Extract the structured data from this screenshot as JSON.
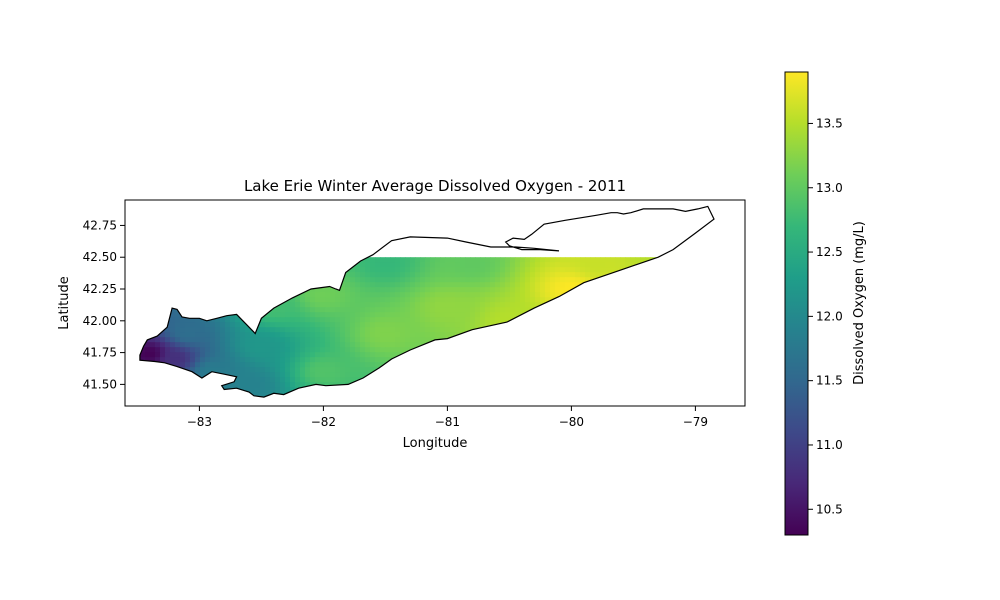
{
  "chart_data": {
    "type": "heatmap",
    "title": "Lake Erie Winter Average Dissolved Oxygen - 2011",
    "xlabel": "Longitude",
    "ylabel": "Latitude",
    "xlim": [
      -83.6,
      -78.6
    ],
    "ylim": [
      41.33,
      42.95
    ],
    "x_ticks": [
      -83,
      -82,
      -81,
      -80,
      -79
    ],
    "x_tick_labels": [
      "−83",
      "−82",
      "−81",
      "−80",
      "−79"
    ],
    "y_ticks": [
      41.5,
      41.75,
      42.0,
      42.25,
      42.5,
      42.75
    ],
    "y_tick_labels": [
      "41.50",
      "41.75",
      "42.00",
      "42.25",
      "42.50",
      "42.75"
    ],
    "grid": false,
    "colormap": "viridis",
    "field_max_lat": 42.5,
    "colorbar": {
      "label": "Dissolved Oxygen (mg/L)",
      "range": [
        10.3,
        13.9
      ],
      "ticks": [
        10.5,
        11.0,
        11.5,
        12.0,
        12.5,
        13.0,
        13.5
      ],
      "tick_labels": [
        "10.5",
        "11.0",
        "11.5",
        "12.0",
        "12.5",
        "13.0",
        "13.5"
      ],
      "colors": [
        "#440154",
        "#482878",
        "#3e4989",
        "#31688e",
        "#26828e",
        "#1f9e89",
        "#35b779",
        "#6ece58",
        "#b5de2b",
        "#fde725"
      ]
    },
    "field_points": [
      {
        "lon": -83.4,
        "lat": 41.74,
        "value": 10.3
      },
      {
        "lon": -83.2,
        "lat": 41.7,
        "value": 10.8
      },
      {
        "lon": -83.1,
        "lat": 41.9,
        "value": 11.6
      },
      {
        "lon": -82.9,
        "lat": 41.6,
        "value": 11.8
      },
      {
        "lon": -82.6,
        "lat": 41.5,
        "value": 11.9
      },
      {
        "lon": -82.5,
        "lat": 41.8,
        "value": 12.2
      },
      {
        "lon": -82.4,
        "lat": 42.1,
        "value": 12.8
      },
      {
        "lon": -82.0,
        "lat": 41.6,
        "value": 12.9
      },
      {
        "lon": -82.0,
        "lat": 42.2,
        "value": 13.1
      },
      {
        "lon": -81.5,
        "lat": 42.45,
        "value": 12.7
      },
      {
        "lon": -81.5,
        "lat": 41.9,
        "value": 13.2
      },
      {
        "lon": -81.0,
        "lat": 42.1,
        "value": 13.3
      },
      {
        "lon": -80.8,
        "lat": 42.45,
        "value": 13.0
      },
      {
        "lon": -80.5,
        "lat": 42.0,
        "value": 13.5
      },
      {
        "lon": -80.0,
        "lat": 42.25,
        "value": 13.9
      },
      {
        "lon": -79.8,
        "lat": 42.45,
        "value": 13.6
      },
      {
        "lon": -79.6,
        "lat": 42.2,
        "value": 13.7
      },
      {
        "lon": -79.3,
        "lat": 42.45,
        "value": 13.5
      }
    ],
    "shoreline": [
      [
        -83.48,
        41.73
      ],
      [
        -83.45,
        41.8
      ],
      [
        -83.42,
        41.85
      ],
      [
        -83.34,
        41.88
      ],
      [
        -83.26,
        41.95
      ],
      [
        -83.22,
        42.1
      ],
      [
        -83.18,
        42.09
      ],
      [
        -83.14,
        42.03
      ],
      [
        -83.08,
        42.02
      ],
      [
        -83.0,
        42.02
      ],
      [
        -82.94,
        42.0
      ],
      [
        -82.86,
        42.02
      ],
      [
        -82.78,
        42.04
      ],
      [
        -82.7,
        42.05
      ],
      [
        -82.63,
        41.98
      ],
      [
        -82.55,
        41.9
      ],
      [
        -82.5,
        42.02
      ],
      [
        -82.4,
        42.1
      ],
      [
        -82.25,
        42.18
      ],
      [
        -82.1,
        42.25
      ],
      [
        -81.95,
        42.27
      ],
      [
        -81.9,
        42.25
      ],
      [
        -81.87,
        42.24
      ],
      [
        -81.82,
        42.38
      ],
      [
        -81.7,
        42.47
      ],
      [
        -81.6,
        42.52
      ],
      [
        -81.45,
        42.63
      ],
      [
        -81.3,
        42.66
      ],
      [
        -81.0,
        42.65
      ],
      [
        -80.85,
        42.62
      ],
      [
        -80.65,
        42.58
      ],
      [
        -80.45,
        42.58
      ],
      [
        -80.3,
        42.57
      ],
      [
        -80.1,
        42.55
      ],
      [
        -80.25,
        42.56
      ],
      [
        -80.4,
        42.56
      ],
      [
        -80.5,
        42.59
      ],
      [
        -80.53,
        42.62
      ],
      [
        -80.47,
        42.65
      ],
      [
        -80.38,
        42.64
      ],
      [
        -80.32,
        42.68
      ],
      [
        -80.22,
        42.76
      ],
      [
        -80.05,
        42.79
      ],
      [
        -79.8,
        42.83
      ],
      [
        -79.68,
        42.85
      ],
      [
        -79.63,
        42.85
      ],
      [
        -79.58,
        42.84
      ],
      [
        -79.52,
        42.85
      ],
      [
        -79.42,
        42.88
      ],
      [
        -79.18,
        42.88
      ],
      [
        -79.08,
        42.86
      ],
      [
        -78.98,
        42.88
      ],
      [
        -78.9,
        42.9
      ],
      [
        -78.85,
        42.8
      ],
      [
        -79.0,
        42.69
      ],
      [
        -79.18,
        42.56
      ],
      [
        -79.3,
        42.5
      ],
      [
        -79.6,
        42.4
      ],
      [
        -79.9,
        42.3
      ],
      [
        -80.1,
        42.19
      ],
      [
        -80.3,
        42.1
      ],
      [
        -80.52,
        41.99
      ],
      [
        -80.8,
        41.93
      ],
      [
        -81.0,
        41.86
      ],
      [
        -81.1,
        41.85
      ],
      [
        -81.3,
        41.77
      ],
      [
        -81.45,
        41.7
      ],
      [
        -81.55,
        41.63
      ],
      [
        -81.68,
        41.55
      ],
      [
        -81.8,
        41.5
      ],
      [
        -81.98,
        41.49
      ],
      [
        -82.06,
        41.5
      ],
      [
        -82.2,
        41.47
      ],
      [
        -82.32,
        41.42
      ],
      [
        -82.4,
        41.43
      ],
      [
        -82.48,
        41.4
      ],
      [
        -82.56,
        41.41
      ],
      [
        -82.6,
        41.44
      ],
      [
        -82.7,
        41.47
      ],
      [
        -82.8,
        41.46
      ],
      [
        -82.82,
        41.49
      ],
      [
        -82.72,
        41.52
      ],
      [
        -82.7,
        41.56
      ],
      [
        -82.8,
        41.58
      ],
      [
        -82.9,
        41.6
      ],
      [
        -82.98,
        41.55
      ],
      [
        -83.06,
        41.6
      ],
      [
        -83.18,
        41.64
      ],
      [
        -83.28,
        41.67
      ],
      [
        -83.36,
        41.68
      ],
      [
        -83.48,
        41.69
      ]
    ]
  }
}
